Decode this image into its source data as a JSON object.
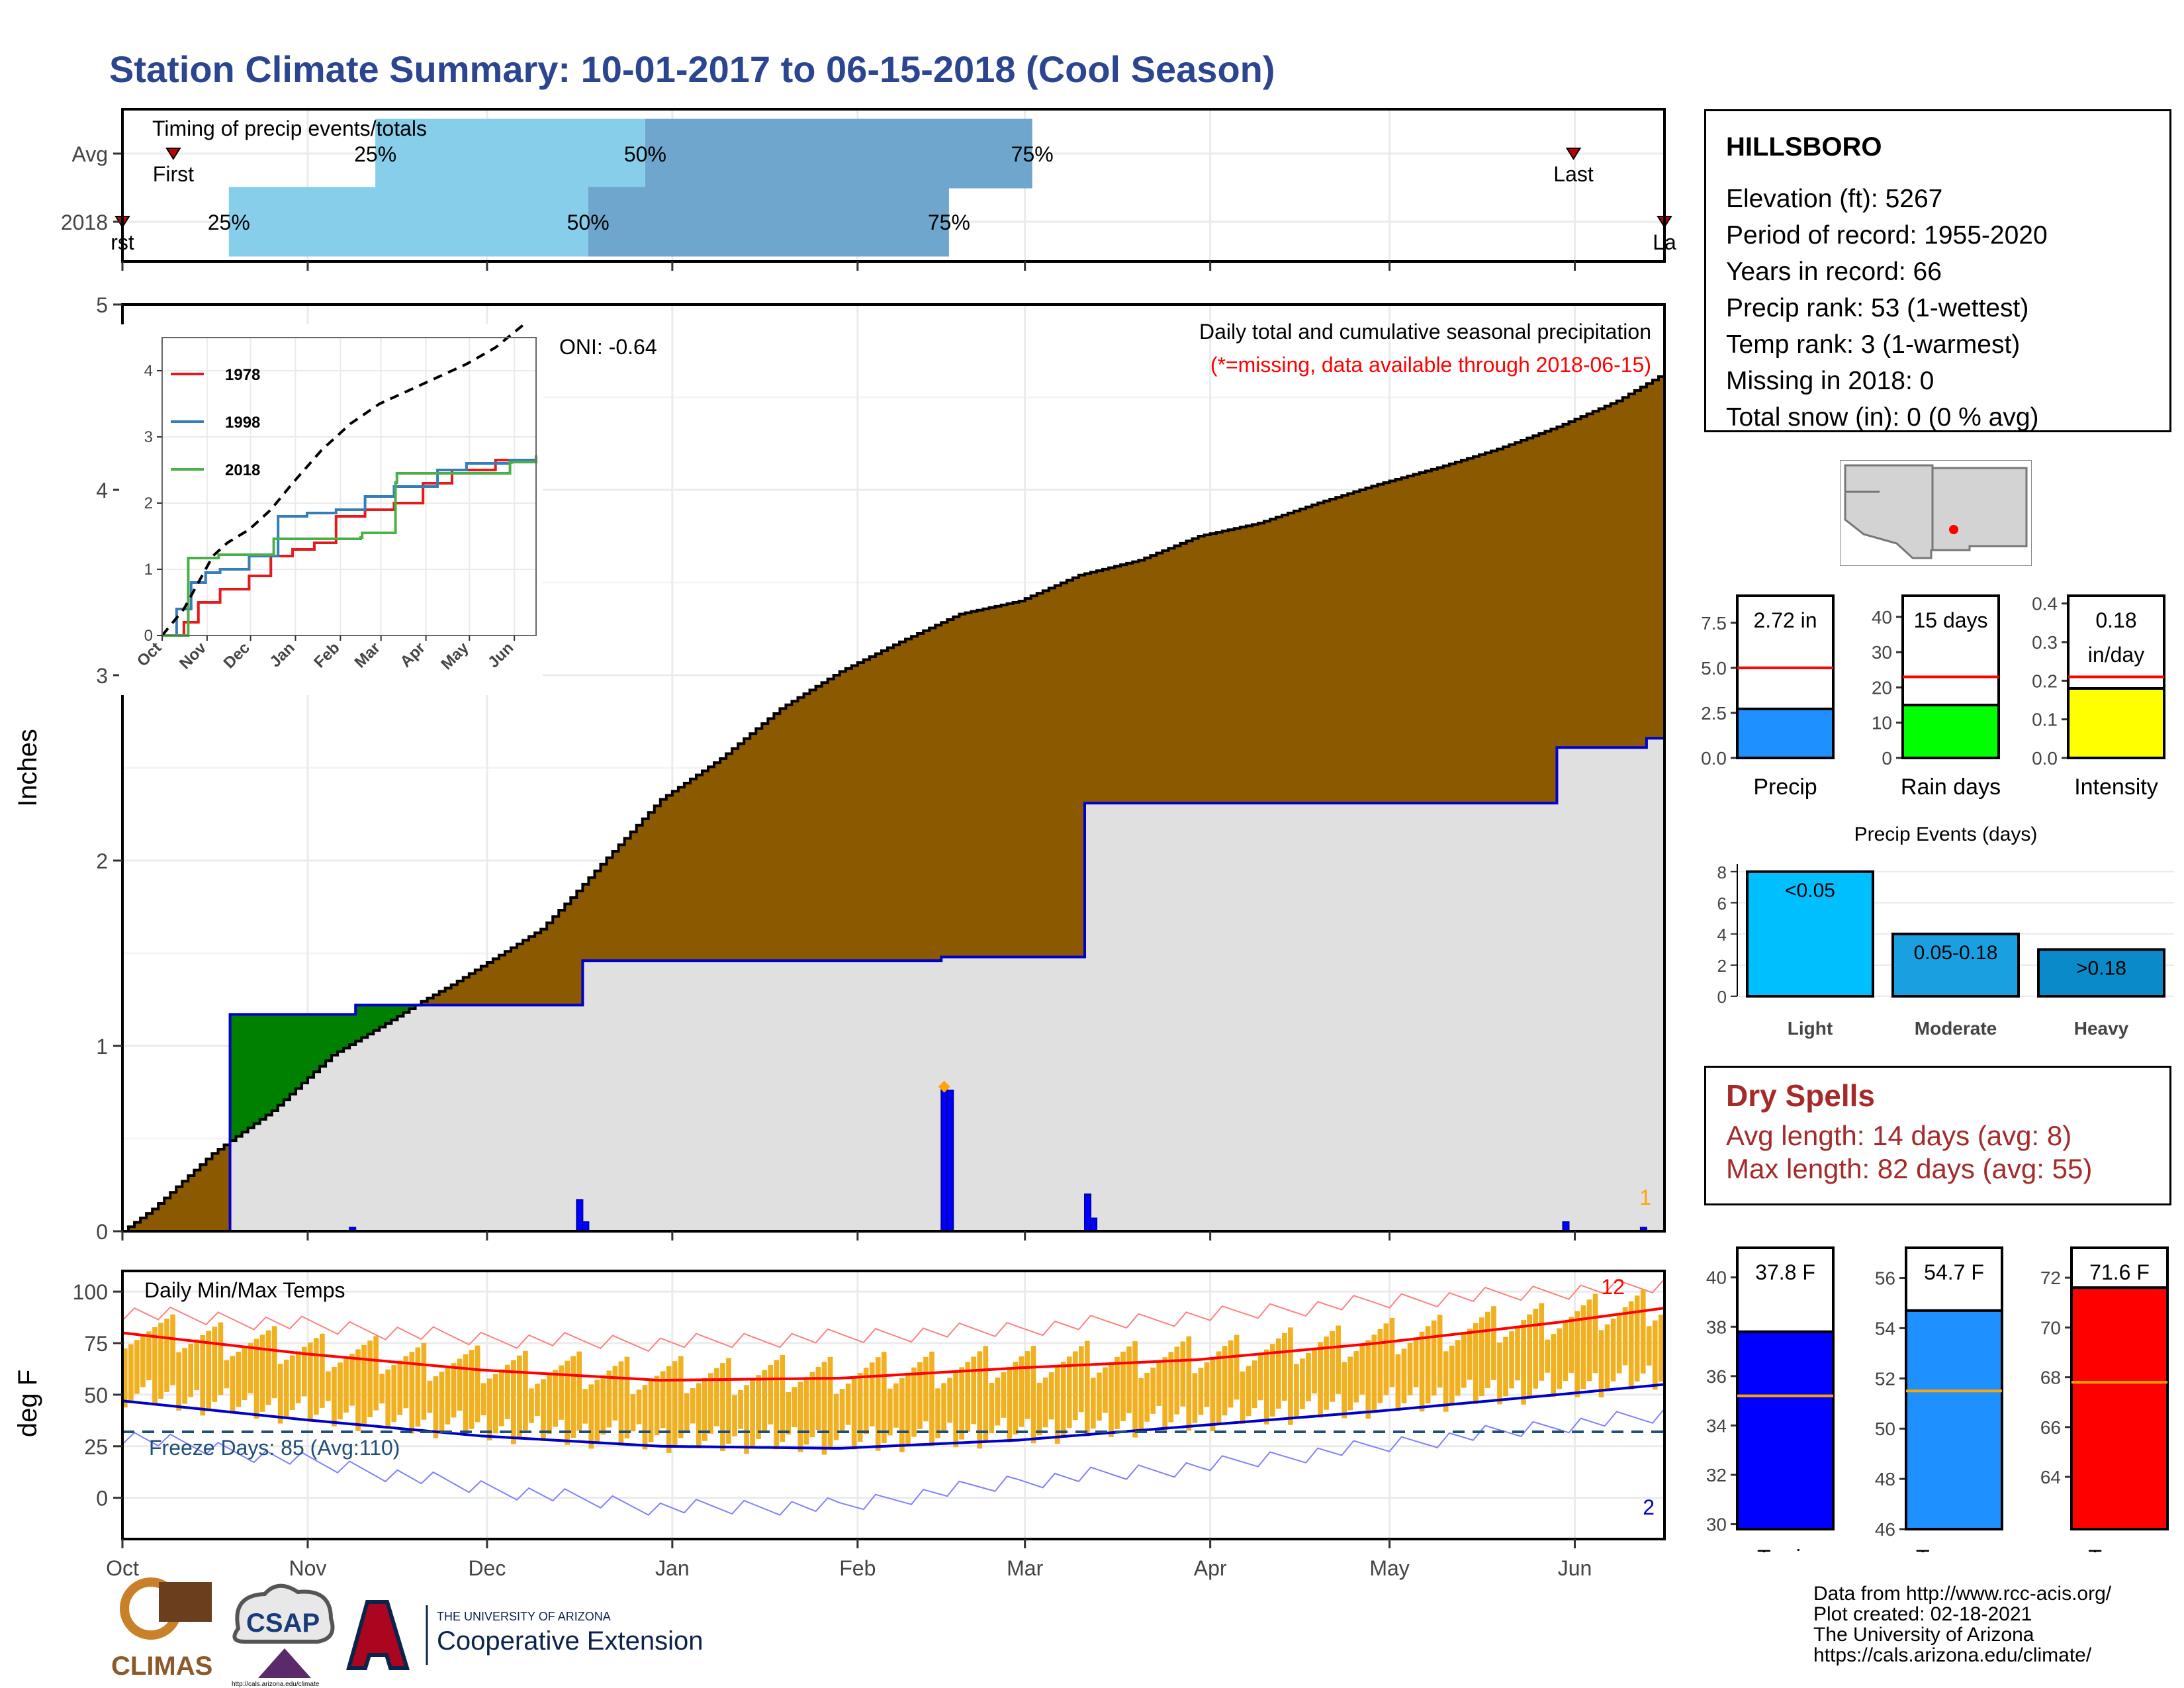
{
  "title": "Station Climate Summary: 10-01-2017 to 06-15-2018 (Cool Season)",
  "timing": {
    "label": "Timing of precip events/totals",
    "rows": [
      {
        "name": "Avg",
        "first_label": "First",
        "last_label": "Last",
        "p25": 0.164,
        "p50": 0.339,
        "p75": 0.59,
        "first": 0.033,
        "last": 0.941
      },
      {
        "name": "2018",
        "first_label": "rst",
        "last_label": "La",
        "p25": 0.069,
        "p50": 0.302,
        "p75": 0.536,
        "first": 0.0,
        "last": 1.0
      }
    ],
    "pct_labels": [
      "25%",
      "50%",
      "75%"
    ],
    "colors": {
      "low": "#87ceeb",
      "high": "#6ea6cd"
    }
  },
  "chart_data": [
    {
      "type": "area",
      "name": "cumulative-precip",
      "title": "Daily total and cumulative seasonal precipitation",
      "subtitle": "(*=missing, data available through 2018-06-15)",
      "oni": "ONI: -0.64",
      "ylabel": "Inches",
      "ylim": [
        0,
        5
      ],
      "yticks": [
        "0",
        "1",
        "2",
        "3",
        "4",
        "5"
      ],
      "season_days": 258,
      "avg_cumulative": {
        "x": [
          0,
          5,
          15,
          25,
          35,
          45,
          50,
          55,
          60,
          70,
          75,
          80,
          90,
          100,
          110,
          120,
          130,
          140,
          150,
          160,
          170,
          180,
          190,
          200,
          210,
          220,
          230,
          240,
          250,
          258
        ],
        "y": [
          0,
          0.12,
          0.42,
          0.65,
          0.95,
          1.14,
          1.24,
          1.33,
          1.43,
          1.63,
          1.8,
          1.98,
          2.33,
          2.55,
          2.82,
          3.02,
          3.18,
          3.33,
          3.4,
          3.54,
          3.62,
          3.75,
          3.82,
          3.93,
          4.03,
          4.12,
          4.22,
          4.34,
          4.48,
          4.63
        ]
      },
      "season_cumulative": {
        "x": [
          0,
          18,
          39,
          77,
          137,
          161,
          240,
          255,
          258
        ],
        "y": [
          0,
          1.17,
          1.22,
          1.46,
          1.48,
          2.31,
          2.61,
          2.66,
          2.72
        ]
      },
      "daily_bars": {
        "x": [
          38,
          76,
          77,
          137,
          138,
          161,
          162,
          241,
          254
        ],
        "y": [
          0.02,
          0.17,
          0.05,
          0.78,
          0.76,
          0.2,
          0.07,
          0.05,
          0.02
        ]
      },
      "marker": {
        "x": 137.5,
        "y": 0.78
      },
      "corner_label": "1",
      "colors": {
        "deficit": "#8b5a00",
        "surplus": "#008000",
        "season": "#e0e0e0",
        "line": "#0000cc",
        "bars": "#0000ff"
      }
    },
    {
      "type": "line",
      "name": "inset-cumulative",
      "months": [
        "Oct",
        "Nov",
        "Dec",
        "Jan",
        "Feb",
        "Mar",
        "Apr",
        "May",
        "Jun"
      ],
      "ylim": [
        0,
        4.5
      ],
      "yticks": [
        "0",
        "1",
        "2",
        "3",
        "4"
      ],
      "series": [
        {
          "name": "1978",
          "color": "#e41a1c",
          "x": [
            0,
            15,
            25,
            40,
            60,
            75,
            90,
            105,
            120,
            140,
            160,
            180,
            200,
            230,
            258
          ],
          "y": [
            0,
            0.2,
            0.5,
            0.7,
            0.9,
            1.2,
            1.3,
            1.4,
            1.8,
            1.9,
            2.0,
            2.3,
            2.5,
            2.65,
            2.7
          ]
        },
        {
          "name": "1998",
          "color": "#377eb8",
          "x": [
            0,
            10,
            20,
            30,
            40,
            60,
            80,
            100,
            120,
            140,
            160,
            190,
            210,
            240,
            258
          ],
          "y": [
            0,
            0.4,
            0.8,
            0.95,
            1.0,
            1.2,
            1.8,
            1.85,
            1.9,
            2.1,
            2.25,
            2.5,
            2.6,
            2.65,
            2.7
          ]
        },
        {
          "name": "2018",
          "color": "#4daf4a",
          "x": [
            0,
            17,
            18,
            39,
            40,
            77,
            78,
            137,
            138,
            161,
            162,
            240,
            241,
            258
          ],
          "y": [
            0,
            0,
            1.17,
            1.22,
            1.22,
            1.46,
            1.46,
            1.48,
            1.55,
            2.31,
            2.45,
            2.61,
            2.62,
            2.72
          ]
        },
        {
          "name": "",
          "color": "#000000",
          "dash": true,
          "x": [
            0,
            15,
            25,
            35,
            45,
            60,
            75,
            90,
            110,
            130,
            150,
            170,
            190,
            210,
            230,
            258
          ],
          "y": [
            0,
            0.4,
            0.8,
            1.2,
            1.4,
            1.6,
            1.9,
            2.3,
            2.8,
            3.2,
            3.5,
            3.7,
            3.9,
            4.1,
            4.35,
            4.85
          ]
        }
      ]
    },
    {
      "type": "bar",
      "name": "daily-temps",
      "title": "Daily Min/Max Temps",
      "ylabel": "deg F",
      "ylim": [
        -20,
        110
      ],
      "yticks": [
        "0",
        "25",
        "50",
        "75",
        "100"
      ],
      "freeze_label": "Freeze Days: 85 (Avg:110)",
      "freeze_line": 32,
      "record_high_count": "12",
      "record_low_count": "2",
      "months": [
        "Oct",
        "Nov",
        "Dec",
        "Jan",
        "Feb",
        "Mar",
        "Apr",
        "May",
        "Jun"
      ],
      "avg_max": {
        "x": [
          0,
          30,
          60,
          90,
          120,
          150,
          180,
          210,
          240,
          258
        ],
        "y": [
          80,
          70,
          62,
          57,
          58,
          63,
          67,
          75,
          85,
          92
        ]
      },
      "avg_min": {
        "x": [
          0,
          30,
          60,
          90,
          120,
          150,
          180,
          210,
          240,
          258
        ],
        "y": [
          47,
          38,
          30,
          25,
          24,
          28,
          35,
          42,
          50,
          55
        ]
      },
      "record_high": {
        "x": [
          0,
          30,
          60,
          90,
          120,
          150,
          180,
          210,
          240,
          258
        ],
        "y": [
          90,
          84,
          77,
          75,
          78,
          82,
          88,
          95,
          100,
          103
        ]
      },
      "record_low": {
        "x": [
          0,
          30,
          60,
          90,
          120,
          150,
          180,
          210,
          240,
          258
        ],
        "y": [
          30,
          18,
          5,
          -5,
          -4,
          8,
          15,
          25,
          35,
          40
        ]
      },
      "colors": {
        "bars": "#f0b020",
        "avg_max": "#ff0000",
        "avg_min": "#0000cc",
        "freeze": "#1f4e79"
      }
    },
    {
      "type": "bar",
      "name": "precip-summary",
      "panels": [
        {
          "label": "Precip",
          "value_label": "2.72 in",
          "value": 2.72,
          "avg": 5.0,
          "max": 9,
          "ticks": [
            "0.0",
            "2.5",
            "5.0",
            "7.5"
          ],
          "tick_values": [
            0,
            2.5,
            5.0,
            7.5
          ],
          "color": "#1e90ff"
        },
        {
          "label": "Rain days",
          "value_label": "15 days",
          "value": 15,
          "avg": 23,
          "max": 46,
          "ticks": [
            "0",
            "10",
            "20",
            "30",
            "40"
          ],
          "tick_values": [
            0,
            10,
            20,
            30,
            40
          ],
          "color": "#00ff00"
        },
        {
          "label": "Intensity",
          "value_label_lines": [
            "0.18",
            "in/day"
          ],
          "value": 0.18,
          "avg": 0.21,
          "max": 0.42,
          "ticks": [
            "0.0",
            "0.1",
            "0.2",
            "0.3",
            "0.4"
          ],
          "tick_values": [
            0,
            0.1,
            0.2,
            0.3,
            0.4
          ],
          "color": "#ffff00"
        }
      ]
    },
    {
      "type": "bar",
      "name": "precip-events",
      "title": "Precip Events (days)",
      "categories": [
        "Light",
        "Moderate",
        "Heavy"
      ],
      "bar_labels": [
        "<0.05",
        "0.05-0.18",
        ">0.18"
      ],
      "values": [
        8,
        4,
        3
      ],
      "ylim": [
        0,
        8.5
      ],
      "yticks": [
        "0",
        "2",
        "4",
        "6",
        "8"
      ],
      "colors": [
        "#00bfff",
        "#1a9fe0",
        "#0a8ac8"
      ]
    },
    {
      "type": "bar",
      "name": "temp-summary",
      "panels": [
        {
          "label": "T-min",
          "value_label": "37.8 F",
          "value": 37.8,
          "avg": 35.2,
          "min": 29.8,
          "max": 41.2,
          "ticks": [
            "30",
            "32",
            "34",
            "36",
            "38",
            "40"
          ],
          "tick_values": [
            30,
            32,
            34,
            36,
            38,
            40
          ],
          "color": "#0000ff"
        },
        {
          "label": "T-mean",
          "value_label": "54.7 F",
          "value": 54.7,
          "avg": 51.5,
          "min": 46,
          "max": 57.2,
          "ticks": [
            "46",
            "48",
            "50",
            "52",
            "54",
            "56"
          ],
          "tick_values": [
            46,
            48,
            50,
            52,
            54,
            56
          ],
          "color": "#1e90ff"
        },
        {
          "label": "T-max",
          "value_label": "71.6 F",
          "value": 71.6,
          "avg": 67.8,
          "min": 61.9,
          "max": 73.2,
          "ticks": [
            "64",
            "66",
            "68",
            "70",
            "72"
          ],
          "tick_values": [
            64,
            66,
            68,
            70,
            72
          ],
          "color": "#ff0000"
        }
      ]
    }
  ],
  "info": {
    "station": "HILLSBORO",
    "lines": [
      "Elevation (ft): 5267",
      "Period of record: 1955-2020",
      "Years in record: 66",
      "Precip rank: 53 (1-wettest)",
      "Temp rank: 3 (1-warmest)",
      "Missing in 2018: 0",
      "Total snow (in): 0 (0 % avg)"
    ]
  },
  "dry_spells": {
    "title": "Dry Spells",
    "avg": "Avg length: 14 days (avg: 8)",
    "max": "Max length: 82 days (avg: 55)"
  },
  "credits": [
    "Data from http://www.rcc-acis.org/",
    "Plot created: 02-18-2021",
    "The University of Arizona",
    "https://cals.arizona.edu/climate/"
  ],
  "logos": {
    "climas": "CLIMAS",
    "csap": "CSAP",
    "csap_url": "http://cals.arizona.edu/climate",
    "ua_small": "THE UNIVERSITY OF ARIZONA",
    "ua_big": "Cooperative Extension"
  }
}
